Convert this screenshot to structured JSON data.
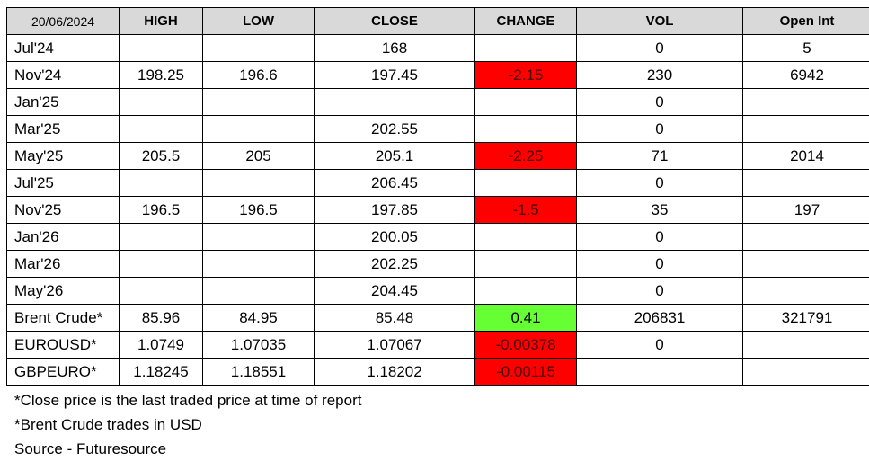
{
  "table": {
    "headers": [
      "20/06/2024",
      "HIGH",
      "LOW",
      "CLOSE",
      "CHANGE",
      "VOL",
      "Open Int"
    ],
    "rows": [
      {
        "label": "Jul'24",
        "high": "",
        "low": "",
        "close": "168",
        "change": "",
        "change_sign": "",
        "vol": "0",
        "open_int": "5"
      },
      {
        "label": "Nov'24",
        "high": "198.25",
        "low": "196.6",
        "close": "197.45",
        "change": "-2.15",
        "change_sign": "neg",
        "vol": "230",
        "open_int": "6942"
      },
      {
        "label": "Jan'25",
        "high": "",
        "low": "",
        "close": "",
        "change": "",
        "change_sign": "",
        "vol": "0",
        "open_int": ""
      },
      {
        "label": "Mar'25",
        "high": "",
        "low": "",
        "close": "202.55",
        "change": "",
        "change_sign": "",
        "vol": "0",
        "open_int": ""
      },
      {
        "label": "May'25",
        "high": "205.5",
        "low": "205",
        "close": "205.1",
        "change": "-2.25",
        "change_sign": "neg",
        "vol": "71",
        "open_int": "2014"
      },
      {
        "label": "Jul'25",
        "high": "",
        "low": "",
        "close": "206.45",
        "change": "",
        "change_sign": "",
        "vol": "0",
        "open_int": ""
      },
      {
        "label": "Nov'25",
        "high": "196.5",
        "low": "196.5",
        "close": "197.85",
        "change": "-1.5",
        "change_sign": "neg",
        "vol": "35",
        "open_int": "197"
      },
      {
        "label": "Jan'26",
        "high": "",
        "low": "",
        "close": "200.05",
        "change": "",
        "change_sign": "",
        "vol": "0",
        "open_int": ""
      },
      {
        "label": "Mar'26",
        "high": "",
        "low": "",
        "close": "202.25",
        "change": "",
        "change_sign": "",
        "vol": "0",
        "open_int": ""
      },
      {
        "label": "May'26",
        "high": "",
        "low": "",
        "close": "204.45",
        "change": "",
        "change_sign": "",
        "vol": "0",
        "open_int": ""
      },
      {
        "label": "Brent Crude*",
        "high": "85.96",
        "low": "84.95",
        "close": "85.48",
        "change": "0.41",
        "change_sign": "pos",
        "vol": "206831",
        "open_int": "321791"
      },
      {
        "label": "EUROUSD*",
        "high": "1.0749",
        "low": "1.07035",
        "close": "1.07067",
        "change": "-0.00378",
        "change_sign": "neg",
        "vol": "0",
        "open_int": ""
      },
      {
        "label": "GBPEURO*",
        "high": "1.18245",
        "low": "1.18551",
        "close": "1.18202",
        "change": "-0.00115",
        "change_sign": "neg",
        "vol": "",
        "open_int": ""
      }
    ]
  },
  "notes": [
    "*Close price is the last traded price at time of report",
    "*Brent Crude trades in USD",
    "Source -  Futuresource"
  ],
  "colors": {
    "header_bg": "#d9d9d9",
    "negative_change": "#ff0000",
    "positive_change": "#66ff33"
  }
}
